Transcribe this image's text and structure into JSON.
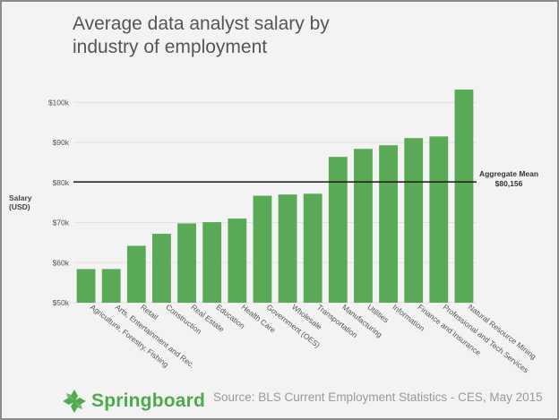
{
  "chart_data": {
    "type": "bar",
    "title_lines": [
      "Average data analyst salary by",
      "industry of employment"
    ],
    "ylabel_lines": [
      "Salary",
      "(USD)"
    ],
    "categories": [
      "Agriculture, Forestry, Fishing",
      "Arts, Entertainment and Rec.",
      "Retail",
      "Construction",
      "Real Estate",
      "Education",
      "Health Care",
      "Government (OES)",
      "Wholesale",
      "Transportation",
      "Manufacturing",
      "Utilities",
      "Information",
      "Finance and Insurance",
      "Professional and Tech Services",
      "Natural Resource Mining"
    ],
    "values": [
      58400,
      58400,
      64200,
      67200,
      69800,
      70100,
      71000,
      76700,
      77000,
      77200,
      86400,
      88400,
      89300,
      91100,
      91500,
      103200
    ],
    "yticks": [
      50000,
      60000,
      70000,
      80000,
      90000,
      100000
    ],
    "ytick_labels": [
      "$50k",
      "$60k",
      "$70k",
      "$80k",
      "$90k",
      "$100k"
    ],
    "ylim": [
      50000,
      105000
    ],
    "bar_color": "#5aa956",
    "reference_line": {
      "value": 80156,
      "label": "Aggregate Mean",
      "value_label": "$80,156",
      "color": "#1a1a1a"
    },
    "grid": "horizontal"
  },
  "footer": {
    "brand": "Springboard",
    "brand_color": "#4dab4d",
    "logo_icon": "springboard-leaf-icon",
    "source": "Source: BLS Current Employment Statistics - CES, May 2015"
  }
}
